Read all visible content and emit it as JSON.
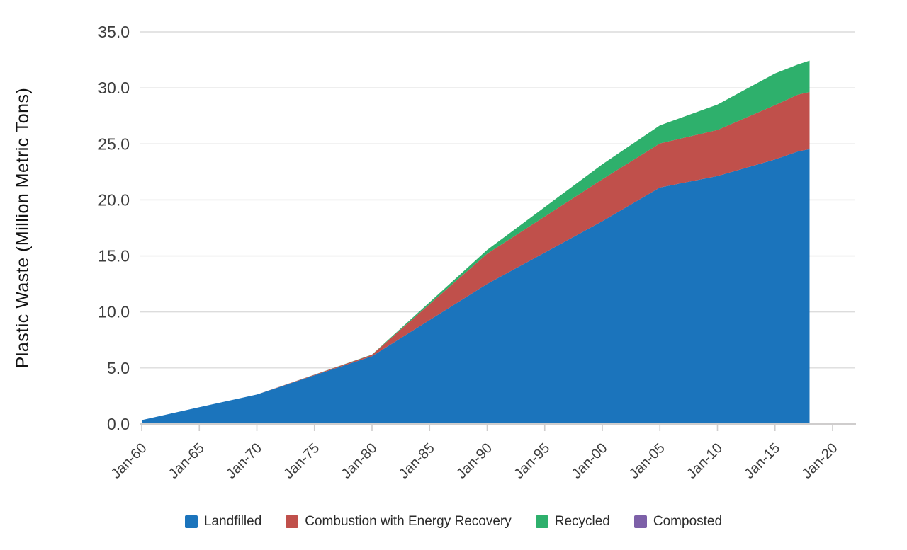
{
  "chart_data": {
    "type": "area",
    "stacked": true,
    "title": "",
    "xlabel": "",
    "ylabel": "Plastic Waste (Million Metric Tons)",
    "xlim": [
      1960,
      2020
    ],
    "ylim": [
      0.0,
      35.0
    ],
    "grid": true,
    "legend_position": "bottom",
    "x": [
      1960,
      1965,
      1970,
      1975,
      1980,
      1985,
      1990,
      1995,
      2000,
      2005,
      2010,
      2015,
      2017,
      2018
    ],
    "series": [
      {
        "name": "Landfilled",
        "color": "#1b74bc",
        "values": [
          0.35,
          1.5,
          2.63,
          4.34,
          6.05,
          9.28,
          12.5,
          15.3,
          18.1,
          21.11,
          22.13,
          23.61,
          24.33,
          24.53
        ]
      },
      {
        "name": "Combustion with Energy Recovery",
        "color": "#c0504b",
        "values": [
          0,
          0,
          0,
          0.06,
          0.13,
          1.41,
          2.7,
          3.22,
          3.74,
          3.93,
          4.11,
          4.85,
          5.07,
          5.1
        ]
      },
      {
        "name": "Recycled",
        "color": "#2eb06c",
        "values": [
          0,
          0,
          0,
          0.01,
          0.02,
          0.18,
          0.34,
          0.84,
          1.34,
          1.61,
          2.27,
          2.83,
          2.69,
          2.8
        ]
      },
      {
        "name": "Composted",
        "color": "#7d60a8",
        "values": [
          0,
          0,
          0,
          0,
          0,
          0,
          0,
          0,
          0,
          0,
          0,
          0,
          0,
          0
        ]
      }
    ],
    "y_ticks": [
      {
        "value": 0,
        "label": "0.0"
      },
      {
        "value": 5,
        "label": "5.0"
      },
      {
        "value": 10,
        "label": "10.0"
      },
      {
        "value": 15,
        "label": "15.0"
      },
      {
        "value": 20,
        "label": "20.0"
      },
      {
        "value": 25,
        "label": "25.0"
      },
      {
        "value": 30,
        "label": "30.0"
      },
      {
        "value": 35,
        "label": "35.0"
      }
    ],
    "x_ticks": [
      {
        "year": 1960,
        "label": "Jan-60"
      },
      {
        "year": 1965,
        "label": "Jan-65"
      },
      {
        "year": 1970,
        "label": "Jan-70"
      },
      {
        "year": 1975,
        "label": "Jan-75"
      },
      {
        "year": 1980,
        "label": "Jan-80"
      },
      {
        "year": 1985,
        "label": "Jan-85"
      },
      {
        "year": 1990,
        "label": "Jan-90"
      },
      {
        "year": 1995,
        "label": "Jan-95"
      },
      {
        "year": 2000,
        "label": "Jan-00"
      },
      {
        "year": 2005,
        "label": "Jan-05"
      },
      {
        "year": 2010,
        "label": "Jan-10"
      },
      {
        "year": 2015,
        "label": "Jan-15"
      },
      {
        "year": 2020,
        "label": "Jan-20"
      }
    ],
    "colors": {
      "gridline": "#dcdcdc",
      "axis_line": "#cfcdcd",
      "tick_mark": "#cfcdcd",
      "tick_text": "#3d3d3d",
      "axis_title_text": "#141414",
      "background": "#ffffff"
    }
  }
}
